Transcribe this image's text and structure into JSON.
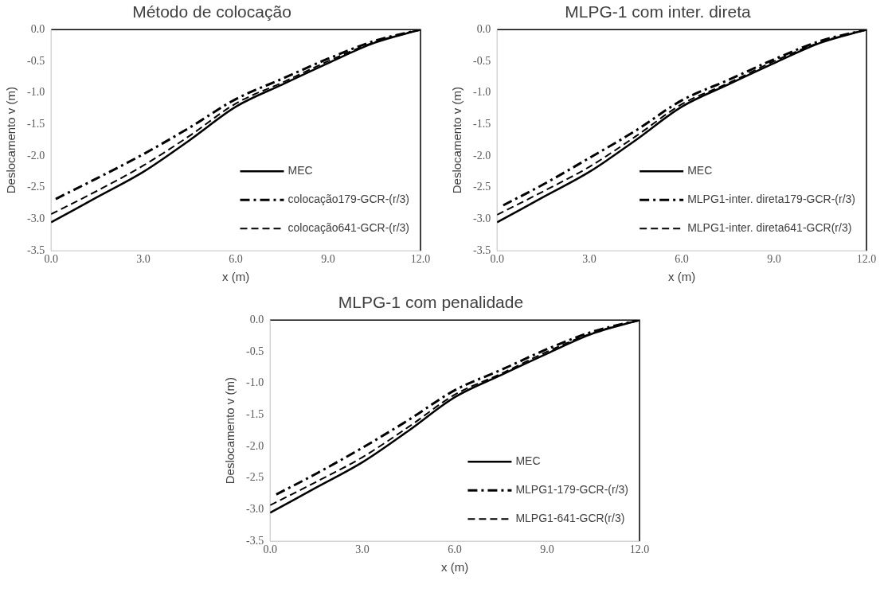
{
  "chart_data": [
    {
      "type": "line",
      "title": "Método de colocação",
      "xlabel": "x (m)",
      "ylabel": "Deslocamento v (m)",
      "xlim": [
        0,
        12
      ],
      "ylim": [
        -3.5,
        0
      ],
      "xticks": [
        {
          "value": 0,
          "label": "0.0"
        },
        {
          "value": 3,
          "label": "3.0"
        },
        {
          "value": 6,
          "label": "6.0"
        },
        {
          "value": 9,
          "label": "9.0"
        },
        {
          "value": 12,
          "label": "12.0"
        }
      ],
      "yticks": [
        {
          "value": -3.5,
          "label": "-3.5"
        },
        {
          "value": -3,
          "label": "-3.0"
        },
        {
          "value": -2.5,
          "label": "-2.5"
        },
        {
          "value": -2,
          "label": "-2.0"
        },
        {
          "value": -1.5,
          "label": "-1.5"
        },
        {
          "value": -1,
          "label": "-1.0"
        },
        {
          "value": -0.5,
          "label": "-0.5"
        },
        {
          "value": 0,
          "label": "0.0"
        }
      ],
      "grid": false,
      "legend": "bottom right",
      "marker": "none",
      "series": [
        {
          "name": "MEC",
          "color": "#000000",
          "line_style": "solid",
          "x": [
            0,
            1.5,
            3,
            4.5,
            6,
            7.5,
            9,
            10.5,
            12
          ],
          "values": [
            -3.05,
            -2.65,
            -2.25,
            -1.75,
            -1.22,
            -0.87,
            -0.53,
            -0.21,
            0
          ]
        },
        {
          "name": "colocação179-GCR-(r/3)",
          "color": "#000000",
          "line_style": "dashdot",
          "x": [
            0.15,
            1.5,
            3,
            4.5,
            6,
            7.5,
            9,
            10.5,
            12
          ],
          "values": [
            -2.68,
            -2.35,
            -1.97,
            -1.55,
            -1.1,
            -0.78,
            -0.46,
            -0.18,
            0
          ]
        },
        {
          "name": "colocação641-GCR-(r/3)",
          "color": "#000000",
          "line_style": "dashed",
          "x": [
            0,
            1.5,
            3,
            4.5,
            6,
            7.5,
            9,
            10.5,
            12
          ],
          "values": [
            -2.92,
            -2.55,
            -2.15,
            -1.68,
            -1.17,
            -0.84,
            -0.5,
            -0.2,
            0
          ]
        }
      ]
    },
    {
      "type": "line",
      "title": "MLPG-1 com inter. direta",
      "xlabel": "x (m)",
      "ylabel": "Deslocamento v (m)",
      "xlim": [
        0,
        12
      ],
      "ylim": [
        -3.5,
        0
      ],
      "xticks": [
        {
          "value": 0,
          "label": "0.0"
        },
        {
          "value": 3,
          "label": "3.0"
        },
        {
          "value": 6,
          "label": "6.0"
        },
        {
          "value": 9,
          "label": "9.0"
        },
        {
          "value": 12,
          "label": "12.0"
        }
      ],
      "yticks": [
        {
          "value": -3.5,
          "label": "-3.5"
        },
        {
          "value": -3,
          "label": "-3.0"
        },
        {
          "value": -2.5,
          "label": "-2.5"
        },
        {
          "value": -2,
          "label": "-2.0"
        },
        {
          "value": -1.5,
          "label": "-1.5"
        },
        {
          "value": -1,
          "label": "-1.0"
        },
        {
          "value": -0.5,
          "label": "-0.5"
        },
        {
          "value": 0,
          "label": "0.0"
        }
      ],
      "grid": false,
      "legend": "bottom right",
      "marker": "none",
      "series": [
        {
          "name": "MEC",
          "color": "#000000",
          "line_style": "solid",
          "x": [
            0,
            1.5,
            3,
            4.5,
            6,
            7.5,
            9,
            10.5,
            12
          ],
          "values": [
            -3.05,
            -2.65,
            -2.25,
            -1.75,
            -1.22,
            -0.87,
            -0.53,
            -0.21,
            0
          ]
        },
        {
          "name": "MLPG1-inter. direta179-GCR-(r/3)",
          "color": "#000000",
          "line_style": "dashdot",
          "x": [
            0.2,
            1.5,
            3,
            4.5,
            6,
            7.5,
            9,
            10.5,
            12
          ],
          "values": [
            -2.78,
            -2.45,
            -2.03,
            -1.6,
            -1.12,
            -0.8,
            -0.47,
            -0.18,
            0
          ]
        },
        {
          "name": "MLPG1-inter. direta641-GCR(r/3)",
          "color": "#000000",
          "line_style": "dashed",
          "x": [
            0,
            1.5,
            3,
            4.5,
            6,
            7.5,
            9,
            10.5,
            12
          ],
          "values": [
            -2.93,
            -2.56,
            -2.17,
            -1.69,
            -1.18,
            -0.85,
            -0.5,
            -0.2,
            0
          ]
        }
      ]
    },
    {
      "type": "line",
      "title": "MLPG-1 com penalidade",
      "xlabel": "x (m)",
      "ylabel": "Deslocamento v (m)",
      "xlim": [
        0,
        12
      ],
      "ylim": [
        -3.5,
        0
      ],
      "xticks": [
        {
          "value": 0,
          "label": "0.0"
        },
        {
          "value": 3,
          "label": "3.0"
        },
        {
          "value": 6,
          "label": "6.0"
        },
        {
          "value": 9,
          "label": "9.0"
        },
        {
          "value": 12,
          "label": "12.0"
        }
      ],
      "yticks": [
        {
          "value": -3.5,
          "label": "-3.5"
        },
        {
          "value": -3,
          "label": "-3.0"
        },
        {
          "value": -2.5,
          "label": "-2.5"
        },
        {
          "value": -2,
          "label": "-2.0"
        },
        {
          "value": -1.5,
          "label": "-1.5"
        },
        {
          "value": -1,
          "label": "-1.0"
        },
        {
          "value": -0.5,
          "label": "-0.5"
        },
        {
          "value": 0,
          "label": "0.0"
        }
      ],
      "grid": false,
      "legend": "bottom right",
      "marker": "none",
      "series": [
        {
          "name": "MEC",
          "color": "#000000",
          "line_style": "solid",
          "x": [
            0,
            1.5,
            3,
            4.5,
            6,
            7.5,
            9,
            10.5,
            12
          ],
          "values": [
            -3.05,
            -2.65,
            -2.25,
            -1.75,
            -1.22,
            -0.87,
            -0.53,
            -0.21,
            0
          ]
        },
        {
          "name": "MLPG1-179-GCR-(r/3)",
          "color": "#000000",
          "line_style": "dashdot",
          "x": [
            0.2,
            1.5,
            3,
            4.5,
            6,
            7.5,
            9,
            10.5,
            12
          ],
          "values": [
            -2.76,
            -2.43,
            -2.02,
            -1.58,
            -1.11,
            -0.79,
            -0.46,
            -0.18,
            0
          ]
        },
        {
          "name": "MLPG1-641-GCR(r/3)",
          "color": "#000000",
          "line_style": "dashed",
          "x": [
            0,
            1.5,
            3,
            4.5,
            6,
            7.5,
            9,
            10.5,
            12
          ],
          "values": [
            -2.93,
            -2.56,
            -2.17,
            -1.69,
            -1.18,
            -0.85,
            -0.5,
            -0.2,
            0
          ]
        }
      ]
    }
  ]
}
